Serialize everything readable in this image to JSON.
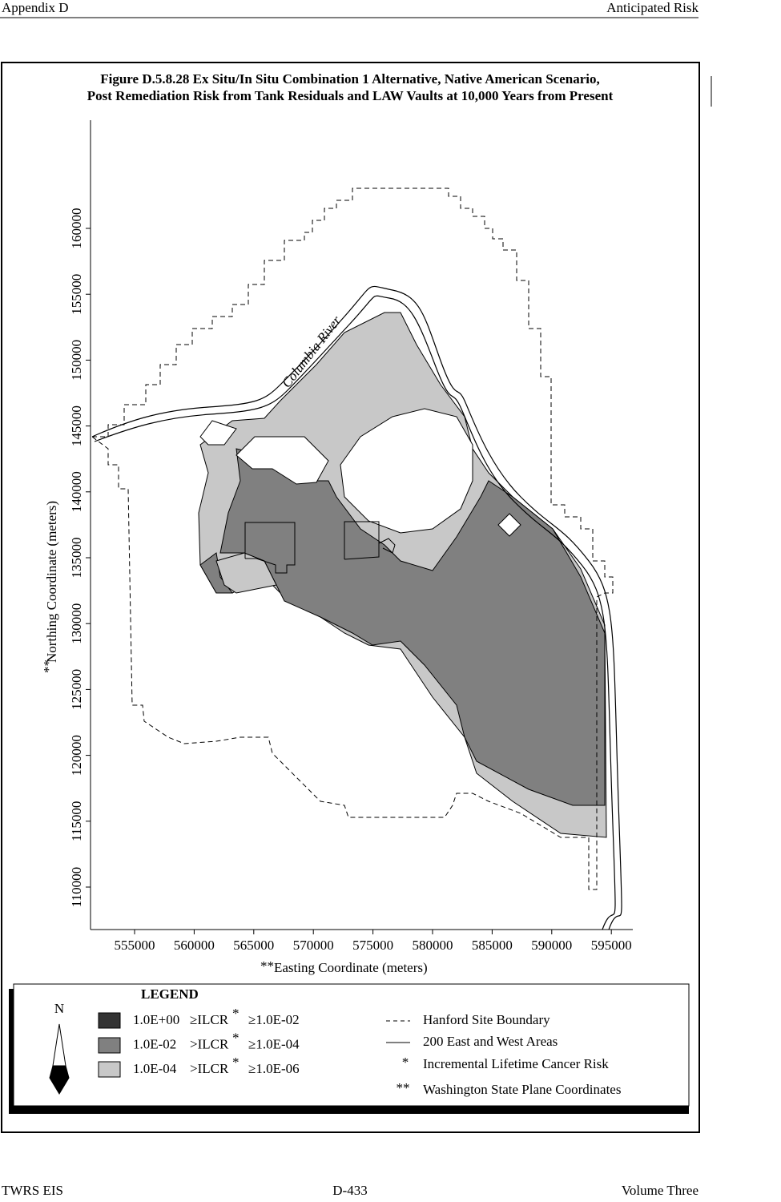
{
  "header": {
    "left": "Appendix D",
    "right": "Anticipated Risk"
  },
  "figure": {
    "title_lines": [
      "Figure D.5.8.28  Ex Situ/In Situ Combination 1 Alternative, Native American Scenario,",
      "Post Remediation Risk from Tank Residuals and LAW Vaults at 10,000 Years from Present"
    ],
    "map": {
      "x_ticks": [
        555000,
        560000,
        565000,
        570000,
        575000,
        580000,
        585000,
        590000,
        595000
      ],
      "y_ticks": [
        160000,
        155000,
        150000,
        145000,
        140000,
        135000,
        130000,
        125000,
        120000,
        115000,
        110000
      ],
      "x_label_mark": "**",
      "x_label": "Easting Coordinate (meters)",
      "y_label_mark": "**",
      "y_label": "Northing Coordinate (meters)",
      "river_label": "Columbia River"
    },
    "legend": {
      "title": "LEGEND",
      "north": "N",
      "ranges": [
        {
          "upper": "1.0E+00",
          "relation": "≥ILCR",
          "note": "*",
          "lower": "≥1.0E-02"
        },
        {
          "upper": "1.0E-02",
          "relation": ">ILCR",
          "note": "*",
          "lower": "≥1.0E-04"
        },
        {
          "upper": "1.0E-04",
          "relation": ">ILCR",
          "note": "*",
          "lower": "≥1.0E-06"
        }
      ],
      "items": [
        {
          "label": "Hanford Site Boundary"
        },
        {
          "label": "200 East and West Areas"
        },
        {
          "mark": "*",
          "label": "Incremental Lifetime Cancer Risk"
        },
        {
          "mark": "**",
          "label": "Washington State Plane Coordinates"
        }
      ]
    }
  },
  "footer": {
    "left": "TWRS EIS",
    "center": "D-433",
    "right": "Volume Three"
  }
}
